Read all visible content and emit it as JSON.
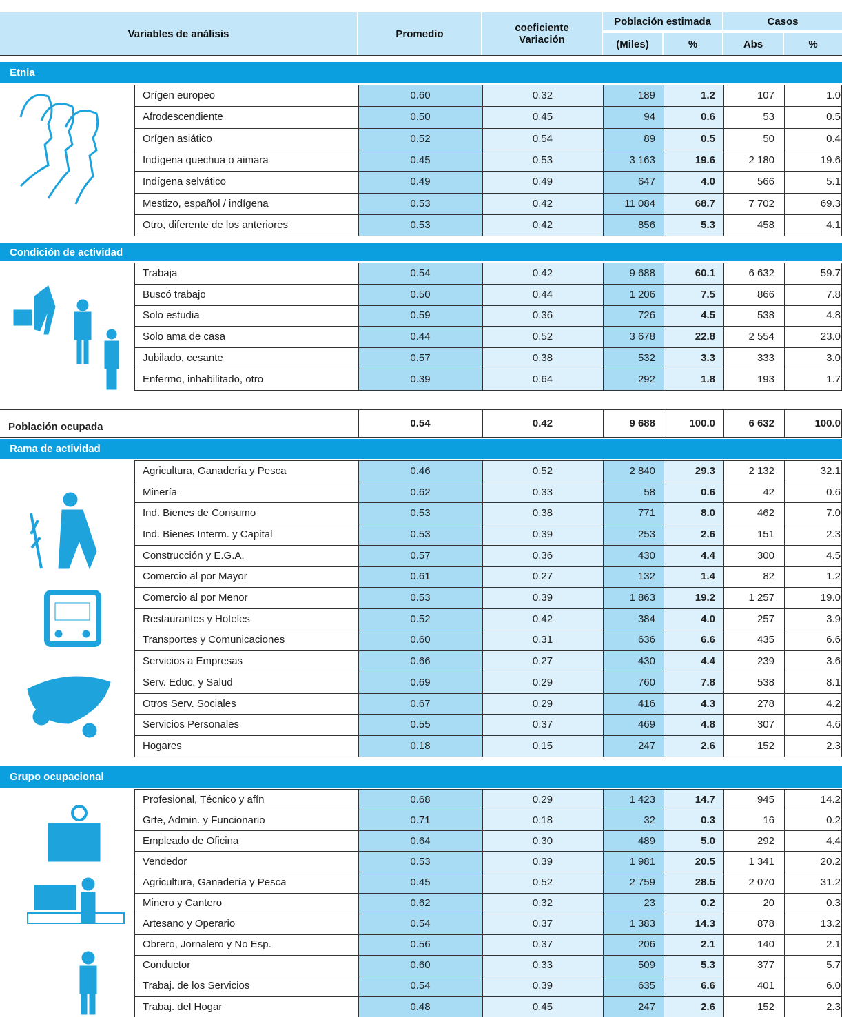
{
  "header": {
    "variables": "Variables de análisis",
    "promedio": "Promedio",
    "coef_line1": "coeficiente",
    "coef_line2": "Variación",
    "poblacion": "Población estimada",
    "miles": "(Miles)",
    "pob_pct": "%",
    "casos": "Casos",
    "abs": "Abs",
    "casos_pct": "%"
  },
  "sections": [
    {
      "title": "Etnia",
      "rows": [
        [
          "Orígen europeo",
          "0.60",
          "0.32",
          "189",
          "1.2",
          "107",
          "1.0"
        ],
        [
          "Afrodescendiente",
          "0.50",
          "0.45",
          "94",
          "0.6",
          "53",
          "0.5"
        ],
        [
          "Orígen asiático",
          "0.52",
          "0.54",
          "89",
          "0.5",
          "50",
          "0.4"
        ],
        [
          "Indígena quechua o aimara",
          "0.45",
          "0.53",
          "3 163",
          "19.6",
          "2 180",
          "19.6"
        ],
        [
          "Indígena selvático",
          "0.49",
          "0.49",
          "647",
          "4.0",
          "566",
          "5.1"
        ],
        [
          "Mestizo, español / indígena",
          "0.53",
          "0.42",
          "11 084",
          "68.7",
          "7 702",
          "69.3"
        ],
        [
          "Otro, diferente de los anteriores",
          "0.53",
          "0.42",
          "856",
          "5.3",
          "458",
          "4.1"
        ]
      ]
    },
    {
      "title": "Condición de actividad",
      "rows": [
        [
          "Trabaja",
          "0.54",
          "0.42",
          "9 688",
          "60.1",
          "6 632",
          "59.7"
        ],
        [
          "Buscó trabajo",
          "0.50",
          "0.44",
          "1 206",
          "7.5",
          "866",
          "7.8"
        ],
        [
          "Solo estudia",
          "0.59",
          "0.36",
          "726",
          "4.5",
          "538",
          "4.8"
        ],
        [
          "Solo ama de casa",
          "0.44",
          "0.52",
          "3 678",
          "22.8",
          "2 554",
          "23.0"
        ],
        [
          "Jubilado, cesante",
          "0.57",
          "0.38",
          "532",
          "3.3",
          "333",
          "3.0"
        ],
        [
          "Enfermo, inhabilitado, otro",
          "0.39",
          "0.64",
          "292",
          "1.8",
          "193",
          "1.7"
        ]
      ]
    },
    {
      "title": "Rama de actividad",
      "rows": [
        [
          "Agricultura, Ganadería y Pesca",
          "0.46",
          "0.52",
          "2 840",
          "29.3",
          "2 132",
          "32.1"
        ],
        [
          "Minería",
          "0.62",
          "0.33",
          "58",
          "0.6",
          "42",
          "0.6"
        ],
        [
          "Ind. Bienes de Consumo",
          "0.53",
          "0.38",
          "771",
          "8.0",
          "462",
          "7.0"
        ],
        [
          "Ind. Bienes Interm. y Capital",
          "0.53",
          "0.39",
          "253",
          "2.6",
          "151",
          "2.3"
        ],
        [
          "Construcción y E.G.A.",
          "0.57",
          "0.36",
          "430",
          "4.4",
          "300",
          "4.5"
        ],
        [
          "Comercio al por Mayor",
          "0.61",
          "0.27",
          "132",
          "1.4",
          "82",
          "1.2"
        ],
        [
          "Comercio al por Menor",
          "0.53",
          "0.39",
          "1 863",
          "19.2",
          "1 257",
          "19.0"
        ],
        [
          "Restaurantes y Hoteles",
          "0.52",
          "0.42",
          "384",
          "4.0",
          "257",
          "3.9"
        ],
        [
          "Transportes y Comunicaciones",
          "0.60",
          "0.31",
          "636",
          "6.6",
          "435",
          "6.6"
        ],
        [
          "Servicios a Empresas",
          "0.66",
          "0.27",
          "430",
          "4.4",
          "239",
          "3.6"
        ],
        [
          "Serv. Educ. y Salud",
          "0.69",
          "0.29",
          "760",
          "7.8",
          "538",
          "8.1"
        ],
        [
          "Otros Serv. Sociales",
          "0.67",
          "0.29",
          "416",
          "4.3",
          "278",
          "4.2"
        ],
        [
          "Servicios Personales",
          "0.55",
          "0.37",
          "469",
          "4.8",
          "307",
          "4.6"
        ],
        [
          "Hogares",
          "0.18",
          "0.15",
          "247",
          "2.6",
          "152",
          "2.3"
        ]
      ]
    },
    {
      "title": "Grupo ocupacional",
      "rows": [
        [
          "Profesional, Técnico y afín",
          "0.68",
          "0.29",
          "1 423",
          "14.7",
          "945",
          "14.2"
        ],
        [
          "Grte, Admin. y Funcionario",
          "0.71",
          "0.18",
          "32",
          "0.3",
          "16",
          "0.2"
        ],
        [
          "Empleado de Oficina",
          "0.64",
          "0.30",
          "489",
          "5.0",
          "292",
          "4.4"
        ],
        [
          "Vendedor",
          "0.53",
          "0.39",
          "1 981",
          "20.5",
          "1 341",
          "20.2"
        ],
        [
          "Agricultura, Ganadería y Pesca",
          "0.45",
          "0.52",
          "2 759",
          "28.5",
          "2 070",
          "31.2"
        ],
        [
          "Minero y Cantero",
          "0.62",
          "0.32",
          "23",
          "0.2",
          "20",
          "0.3"
        ],
        [
          "Artesano y Operario",
          "0.54",
          "0.37",
          "1 383",
          "14.3",
          "878",
          "13.2"
        ],
        [
          "Obrero, Jornalero y No Esp.",
          "0.56",
          "0.37",
          "206",
          "2.1",
          "140",
          "2.1"
        ],
        [
          "Conductor",
          "0.60",
          "0.33",
          "509",
          "5.3",
          "377",
          "5.7"
        ],
        [
          "Trabaj. de los Servicios",
          "0.54",
          "0.39",
          "635",
          "6.6",
          "401",
          "6.0"
        ],
        [
          "Trabaj. del Hogar",
          "0.48",
          "0.45",
          "247",
          "2.6",
          "152",
          "2.3"
        ]
      ]
    }
  ],
  "total": {
    "label": "Población ocupada",
    "values": [
      "0.54",
      "0.42",
      "9 688",
      "100.0",
      "6 632",
      "100.0"
    ]
  }
}
